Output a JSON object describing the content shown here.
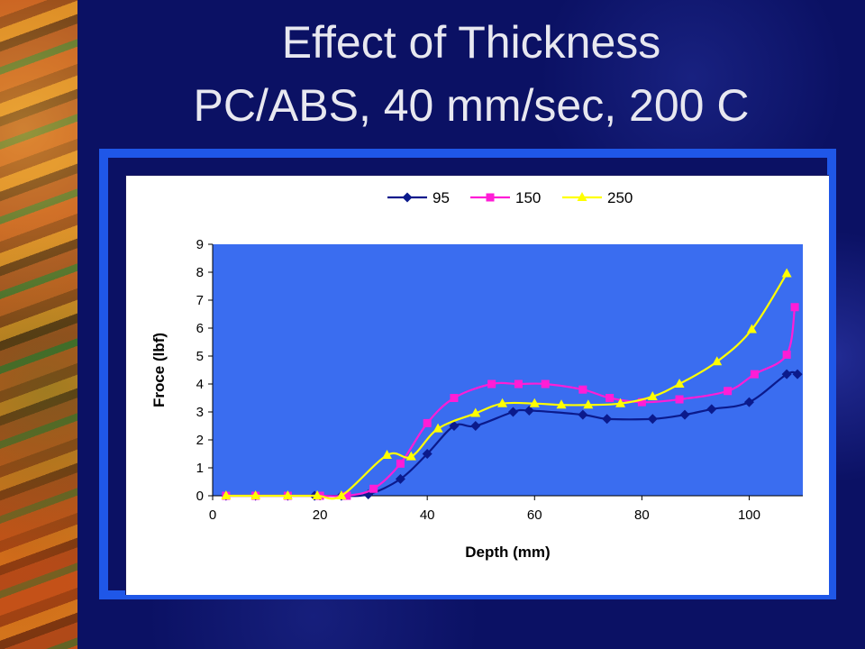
{
  "slide": {
    "title_line1": "Effect of Thickness",
    "title_line2": "PC/ABS, 40 mm/sec, 200 C"
  },
  "chart_data": {
    "type": "line",
    "xlabel": "Depth (mm)",
    "ylabel": "Froce (lbf)",
    "xlim": [
      0,
      110
    ],
    "ylim": [
      0,
      9
    ],
    "xticks": [
      0,
      20,
      40,
      60,
      80,
      100
    ],
    "yticks": [
      0,
      1,
      2,
      3,
      4,
      5,
      6,
      7,
      8,
      9
    ],
    "plot_background": "#3a6df0",
    "legend_position": "top",
    "series": [
      {
        "name": "95",
        "color": "#0b1a8c",
        "marker": "diamond",
        "points": [
          [
            2.5,
            0
          ],
          [
            8,
            0
          ],
          [
            14,
            0
          ],
          [
            19,
            0
          ],
          [
            24,
            0
          ],
          [
            29,
            0.05
          ],
          [
            35,
            0.6
          ],
          [
            40,
            1.5
          ],
          [
            45,
            2.5
          ],
          [
            49,
            2.5
          ],
          [
            56,
            3.0
          ],
          [
            59,
            3.05
          ],
          [
            69,
            2.9
          ],
          [
            73.5,
            2.75
          ],
          [
            82,
            2.75
          ],
          [
            88,
            2.9
          ],
          [
            93,
            3.1
          ],
          [
            100,
            3.35
          ],
          [
            107,
            4.35
          ],
          [
            109,
            4.35
          ]
        ]
      },
      {
        "name": "150",
        "color": "#ff1dd6",
        "marker": "square",
        "points": [
          [
            2.5,
            0
          ],
          [
            8,
            0
          ],
          [
            14,
            0
          ],
          [
            20,
            0
          ],
          [
            25,
            0
          ],
          [
            30,
            0.25
          ],
          [
            35,
            1.15
          ],
          [
            40,
            2.6
          ],
          [
            45,
            3.5
          ],
          [
            52,
            4.0
          ],
          [
            57,
            4.0
          ],
          [
            62,
            4.0
          ],
          [
            69,
            3.8
          ],
          [
            74,
            3.5
          ],
          [
            80,
            3.35
          ],
          [
            87,
            3.45
          ],
          [
            96,
            3.75
          ],
          [
            101,
            4.35
          ],
          [
            107,
            5.05
          ],
          [
            108.5,
            6.75
          ]
        ]
      },
      {
        "name": "250",
        "color": "#ffff00",
        "marker": "triangle",
        "points": [
          [
            2.5,
            0
          ],
          [
            8,
            0
          ],
          [
            14,
            0
          ],
          [
            19.5,
            0
          ],
          [
            24,
            0
          ],
          [
            32.5,
            1.45
          ],
          [
            37,
            1.4
          ],
          [
            42,
            2.4
          ],
          [
            49,
            2.95
          ],
          [
            54,
            3.3
          ],
          [
            60,
            3.3
          ],
          [
            65,
            3.25
          ],
          [
            70,
            3.25
          ],
          [
            76,
            3.3
          ],
          [
            82,
            3.55
          ],
          [
            87,
            4.0
          ],
          [
            94,
            4.8
          ],
          [
            100.5,
            5.95
          ],
          [
            107,
            7.95
          ]
        ]
      }
    ]
  }
}
